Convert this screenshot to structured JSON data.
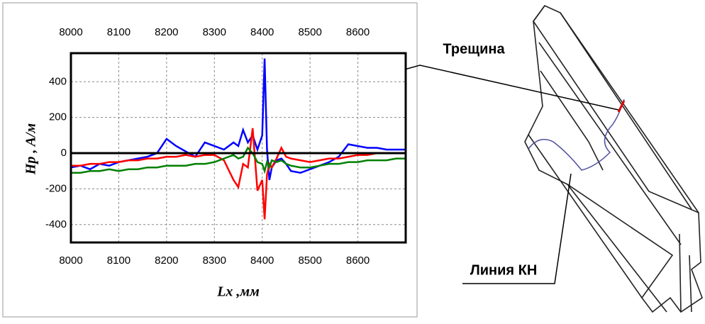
{
  "chart_data": {
    "type": "line",
    "x_label": "Lx ,мм",
    "y_label": "Hp , A/м",
    "annotations": [
      "Трещина",
      "Линия КН"
    ],
    "x": [
      8000,
      8020,
      8040,
      8060,
      8080,
      8100,
      8120,
      8140,
      8160,
      8180,
      8200,
      8220,
      8240,
      8260,
      8280,
      8300,
      8320,
      8340,
      8350,
      8360,
      8370,
      8380,
      8390,
      8400,
      8405,
      8410,
      8415,
      8420,
      8430,
      8440,
      8450,
      8460,
      8480,
      8500,
      8520,
      8540,
      8560,
      8580,
      8600,
      8620,
      8640,
      8660,
      8680,
      8700
    ],
    "series": [
      {
        "color": "#0000ff",
        "values": [
          -80,
          -70,
          -90,
          -60,
          -70,
          -50,
          -40,
          -30,
          -20,
          0,
          80,
          40,
          10,
          -20,
          60,
          40,
          20,
          60,
          40,
          130,
          60,
          100,
          20,
          100,
          530,
          20,
          -150,
          -80,
          -40,
          -30,
          -60,
          -100,
          -110,
          -90,
          -70,
          -50,
          -20,
          50,
          40,
          30,
          30,
          20,
          20,
          20
        ]
      },
      {
        "color": "#ff0000",
        "values": [
          -70,
          -70,
          -60,
          -60,
          -50,
          -50,
          -40,
          -40,
          -30,
          -30,
          -20,
          -20,
          -10,
          -20,
          -10,
          -10,
          -40,
          -150,
          -190,
          -60,
          -80,
          140,
          -210,
          -150,
          -370,
          -120,
          -60,
          -80,
          -30,
          30,
          -20,
          -30,
          -40,
          -50,
          -40,
          -30,
          -30,
          -20,
          -10,
          -10,
          0,
          0,
          0,
          0
        ]
      },
      {
        "color": "#008000",
        "values": [
          -110,
          -110,
          -100,
          -100,
          -90,
          -100,
          -90,
          -90,
          -80,
          -80,
          -70,
          -70,
          -70,
          -60,
          -60,
          -50,
          -30,
          -10,
          -30,
          -20,
          30,
          0,
          -50,
          -60,
          -100,
          -50,
          -80,
          -40,
          -50,
          -40,
          -60,
          -70,
          -80,
          -80,
          -70,
          -60,
          -60,
          -50,
          -50,
          -40,
          -40,
          -40,
          -30,
          -30
        ]
      }
    ],
    "xlim": [
      8000,
      8700
    ],
    "xticks": [
      8000,
      8100,
      8200,
      8300,
      8400,
      8500,
      8600
    ],
    "ylim": [
      -500,
      560
    ],
    "yticks": [
      -400,
      -200,
      0,
      200,
      400
    ],
    "grid": true
  }
}
